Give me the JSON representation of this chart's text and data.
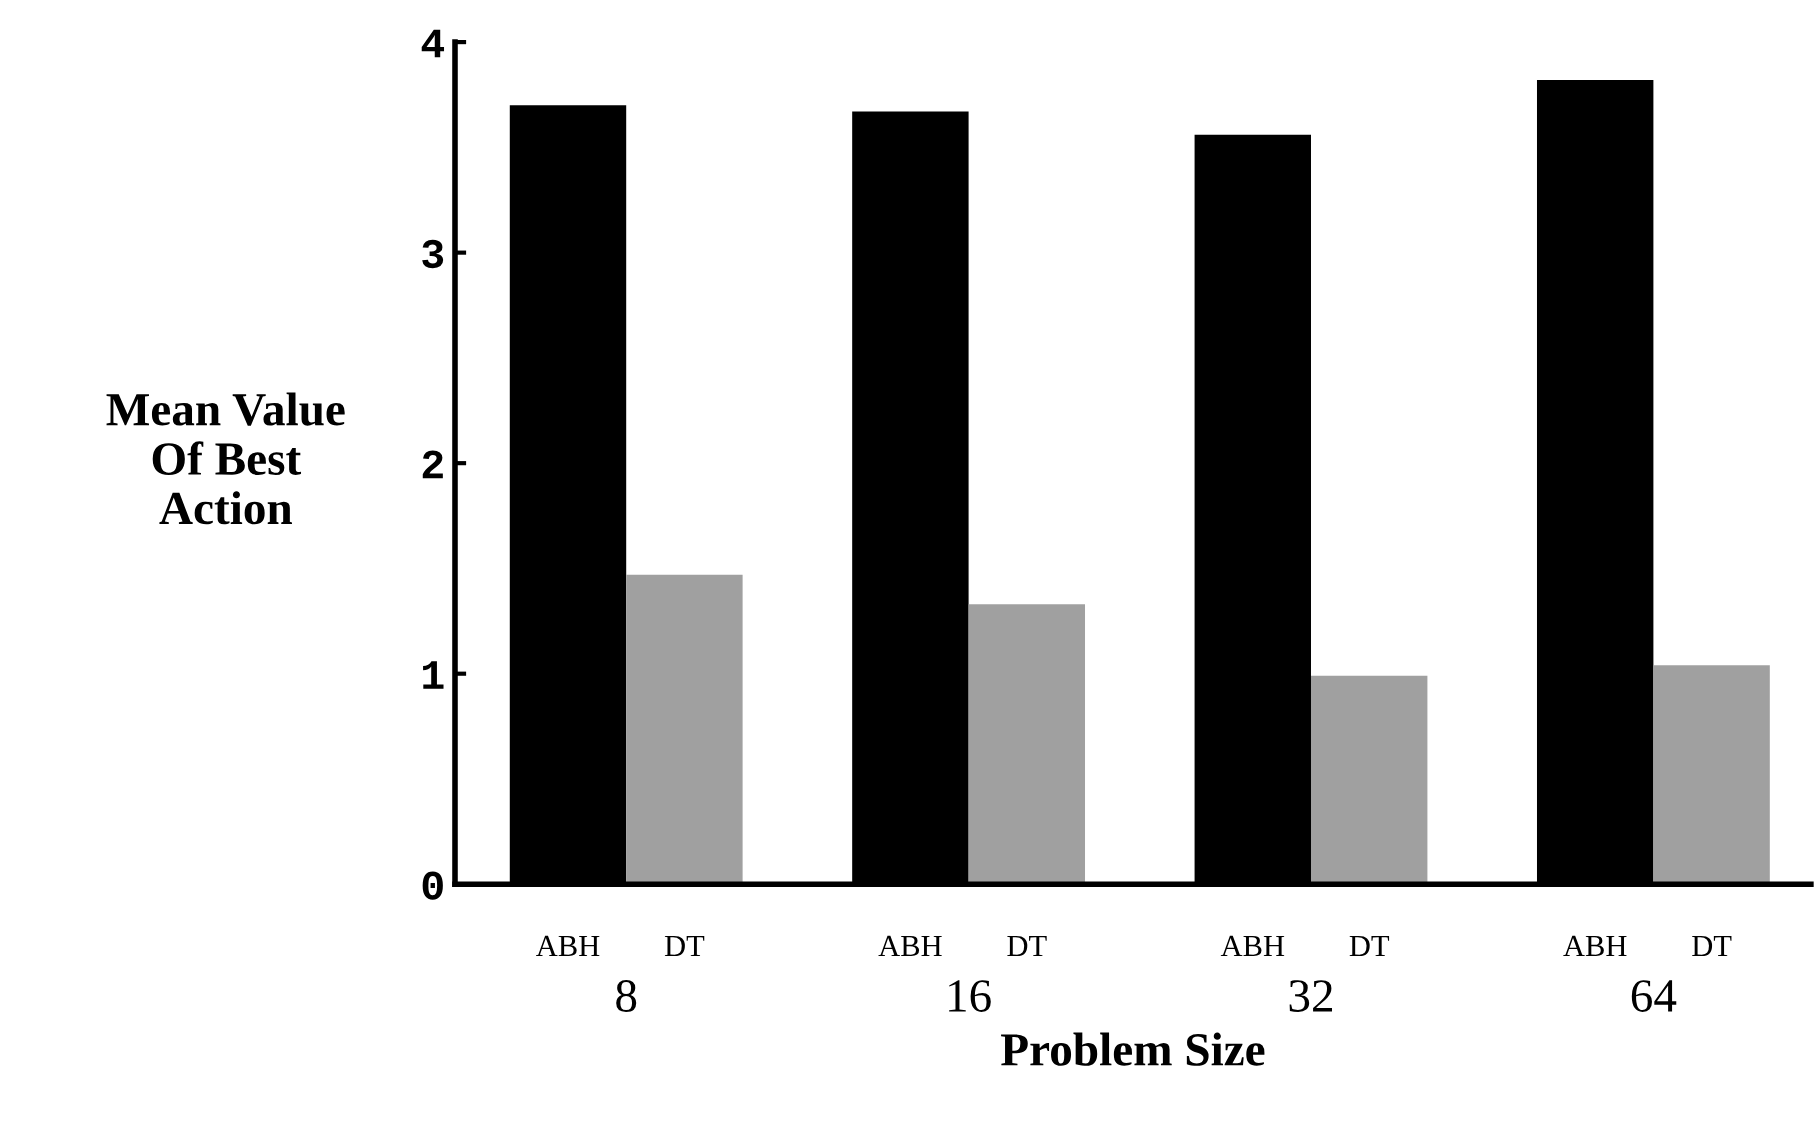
{
  "chart_data": {
    "type": "bar",
    "xlabel": "Problem Size",
    "ylabel": "Mean Value\nOf Best\nAction",
    "categories": [
      "8",
      "16",
      "32",
      "64"
    ],
    "series": [
      {
        "name": "ABH",
        "color": "#000000",
        "values": [
          3.7,
          3.67,
          3.56,
          3.82
        ]
      },
      {
        "name": "DT",
        "color": "#a0a0a0",
        "values": [
          1.47,
          1.33,
          0.99,
          1.04
        ]
      }
    ],
    "ylim": [
      0,
      4
    ],
    "yticks": [
      0,
      1,
      2,
      3,
      4
    ],
    "grid": false,
    "legend": false
  }
}
